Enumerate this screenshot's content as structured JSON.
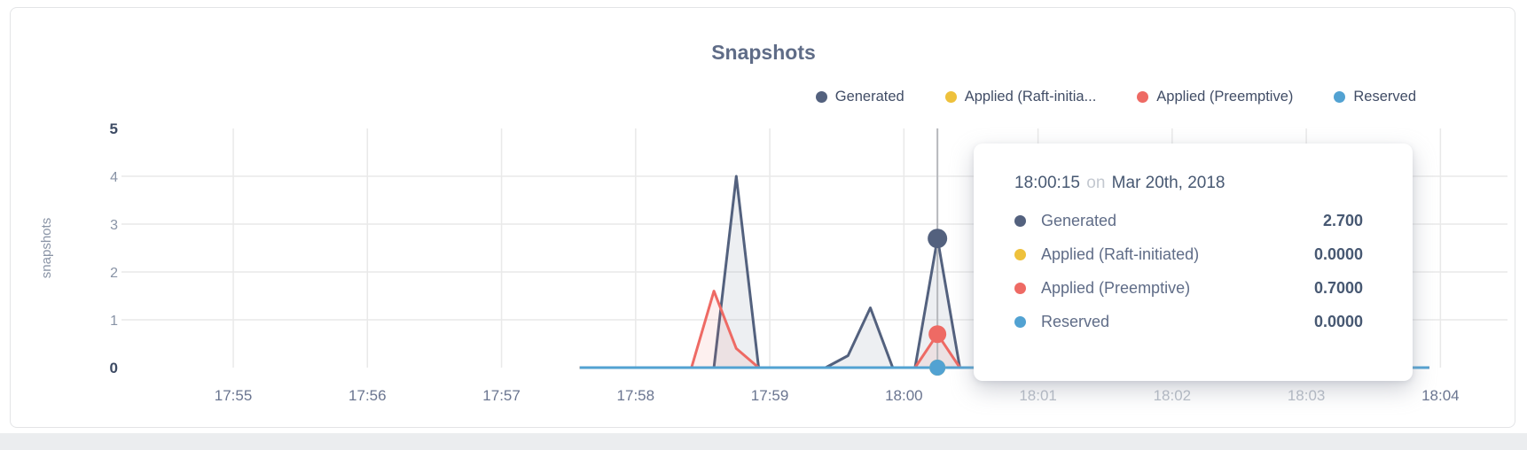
{
  "card": {
    "title": "Snapshots"
  },
  "legend": [
    {
      "label": "Generated",
      "color": "#53617e"
    },
    {
      "label": "Applied (Raft-initia...",
      "color": "#eec13c"
    },
    {
      "label": "Applied (Preemptive)",
      "color": "#ee6a64"
    },
    {
      "label": "Reserved",
      "color": "#52a2d2"
    }
  ],
  "tooltip": {
    "time": "18:00:15",
    "conjunction": "on",
    "date": "Mar 20th, 2018",
    "rows": [
      {
        "label": "Generated",
        "value": "2.700",
        "color": "#53617e"
      },
      {
        "label": "Applied (Raft-initiated)",
        "value": "0.0000",
        "color": "#eec13c"
      },
      {
        "label": "Applied (Preemptive)",
        "value": "0.7000",
        "color": "#ee6a64"
      },
      {
        "label": "Reserved",
        "value": "0.0000",
        "color": "#52a2d2"
      }
    ]
  },
  "chart_data": {
    "type": "area",
    "title": "Snapshots",
    "ylabel": "snapshots",
    "ylim": [
      0,
      5
    ],
    "y_ticks": [
      0,
      1,
      2,
      3,
      4,
      5
    ],
    "grid": "horizontal 1-4 and vertical at each time tick",
    "legend_position": "top-right",
    "x_range": [
      "17:54:10",
      "18:04:30"
    ],
    "x_ticks": [
      {
        "label": "17:55",
        "time": "17:55:00",
        "dim": false
      },
      {
        "label": "17:56",
        "time": "17:56:00",
        "dim": false
      },
      {
        "label": "17:57",
        "time": "17:57:00",
        "dim": false
      },
      {
        "label": "17:58",
        "time": "17:58:00",
        "dim": false
      },
      {
        "label": "17:59",
        "time": "17:59:00",
        "dim": false
      },
      {
        "label": "18:00",
        "time": "18:00:00",
        "dim": false
      },
      {
        "label": "18:01",
        "time": "18:01:00",
        "dim": true
      },
      {
        "label": "18:02",
        "time": "18:02:00",
        "dim": true
      },
      {
        "label": "18:03",
        "time": "18:03:00",
        "dim": true
      },
      {
        "label": "18:04",
        "time": "18:04:00",
        "dim": false
      }
    ],
    "hover": {
      "time": "18:00:15",
      "date": "Mar 20th, 2018"
    },
    "series": [
      {
        "name": "Generated",
        "color": "#53617e",
        "hover_y": 2.7,
        "hover_value": "2.700",
        "points": [
          [
            "17:57:35",
            0
          ],
          [
            "17:58:35",
            0
          ],
          [
            "17:58:45",
            4.0
          ],
          [
            "17:58:55",
            0
          ],
          [
            "17:59:25",
            0
          ],
          [
            "17:59:35",
            0.25
          ],
          [
            "17:59:45",
            1.25
          ],
          [
            "17:59:55",
            0
          ],
          [
            "18:00:05",
            0
          ],
          [
            "18:00:15",
            2.7
          ],
          [
            "18:00:25",
            0
          ],
          [
            "18:03:55",
            0
          ]
        ]
      },
      {
        "name": "Applied (Raft-initiated)",
        "color": "#eec13c",
        "hover_y": 0,
        "hover_value": "0.0000",
        "points": [
          [
            "17:57:35",
            0
          ],
          [
            "18:00:15",
            0
          ],
          [
            "18:03:55",
            0
          ]
        ]
      },
      {
        "name": "Applied (Preemptive)",
        "color": "#ee6a64",
        "hover_y": 0.7,
        "hover_value": "0.7000",
        "points": [
          [
            "17:57:35",
            0
          ],
          [
            "17:58:25",
            0
          ],
          [
            "17:58:35",
            1.6
          ],
          [
            "17:58:45",
            0.4
          ],
          [
            "17:58:55",
            0
          ],
          [
            "18:00:05",
            0
          ],
          [
            "18:00:15",
            0.7
          ],
          [
            "18:00:25",
            0
          ],
          [
            "18:03:55",
            0
          ]
        ]
      },
      {
        "name": "Reserved",
        "color": "#52a2d2",
        "hover_y": 0,
        "hover_value": "0.0000",
        "points": [
          [
            "17:57:35",
            0
          ],
          [
            "18:00:15",
            0
          ],
          [
            "18:03:55",
            0
          ]
        ]
      }
    ]
  }
}
